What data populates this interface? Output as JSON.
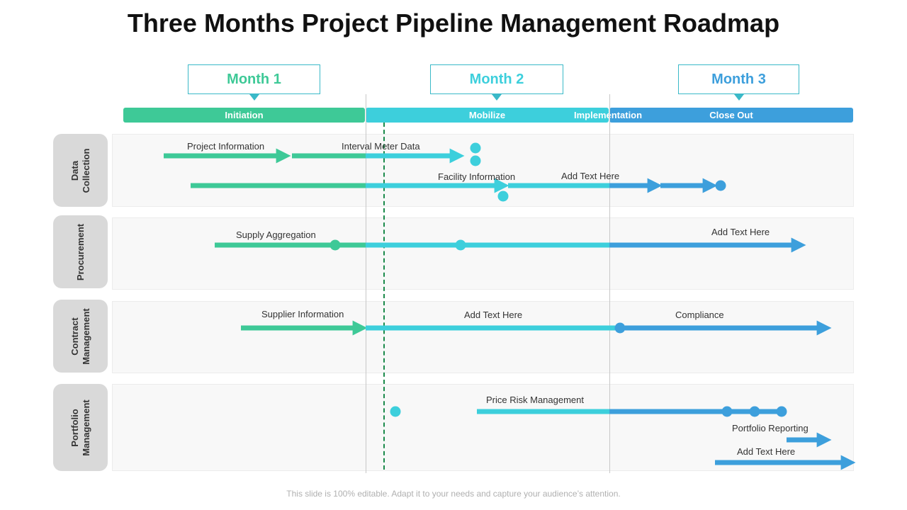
{
  "title": "Three Months Project Pipeline Management Roadmap",
  "months": [
    "Month 1",
    "Month 2",
    "Month 3"
  ],
  "phases": [
    "Initiation",
    "Mobilize",
    "Implementation",
    "Close Out"
  ],
  "lanes": [
    {
      "label": "Data\nCollection"
    },
    {
      "label": "Procurement"
    },
    {
      "label": "Contract\nManagement"
    },
    {
      "label": "Portfolio\nManagement"
    }
  ],
  "tasks": {
    "project_information": "Project Information",
    "interval_meter_data": "Interval  Meter Data",
    "facility_information": "Facility Information",
    "add_text_1": "Add Text Here",
    "supply_aggregation": "Supply Aggregation",
    "add_text_2": "Add Text Here",
    "supplier_information": "Supplier Information",
    "add_text_3": "Add Text Here",
    "compliance": "Compliance",
    "price_risk_management": "Price Risk Management",
    "portfolio_reporting": "Portfolio Reporting",
    "add_text_4": "Add Text Here"
  },
  "colors": {
    "green": "#3ec997",
    "cyan": "#3dcfdc",
    "blue": "#3d9fdc",
    "month_text_1": "#3ec997",
    "month_text_2": "#3dcfdc",
    "month_text_3": "#3d9fdc"
  },
  "footer": "This slide is 100% editable. Adapt it to your needs and capture your audience’s attention."
}
